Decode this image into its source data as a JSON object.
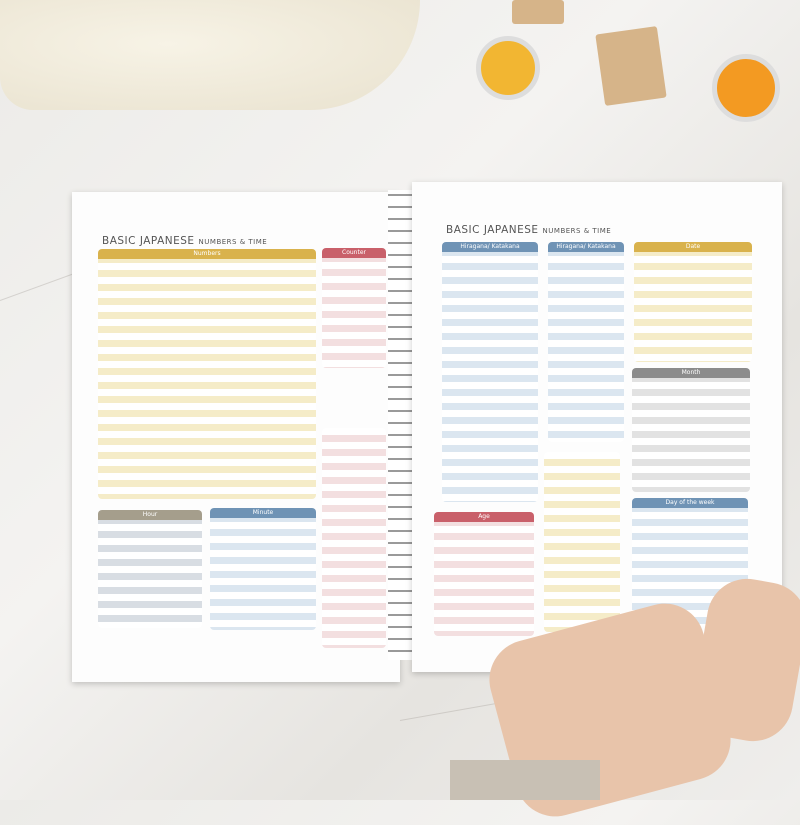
{
  "left_page": {
    "title": "BASIC JAPANESE",
    "subtitle": "NUMBERS & TIME",
    "sections": [
      {
        "label": "Numbers",
        "color": "#d9b24c"
      },
      {
        "label": "Counter",
        "color": "#c9606a"
      },
      {
        "label": "Hour",
        "color": "#a59e8c"
      },
      {
        "label": "Minute",
        "color": "#6f93b5"
      }
    ]
  },
  "right_page": {
    "title": "BASIC JAPANESE",
    "subtitle": "NUMBERS & TIME",
    "sections": [
      {
        "label": "Hiragana/ Katakana",
        "color": "#6f93b5"
      },
      {
        "label": "Hiragana/ Katakana",
        "color": "#6f93b5"
      },
      {
        "label": "Date",
        "color": "#d9b24c"
      },
      {
        "label": "Month",
        "color": "#8c8c8c"
      },
      {
        "label": "Day of the week",
        "color": "#6f93b5"
      },
      {
        "label": "Age",
        "color": "#c9606a"
      }
    ]
  }
}
